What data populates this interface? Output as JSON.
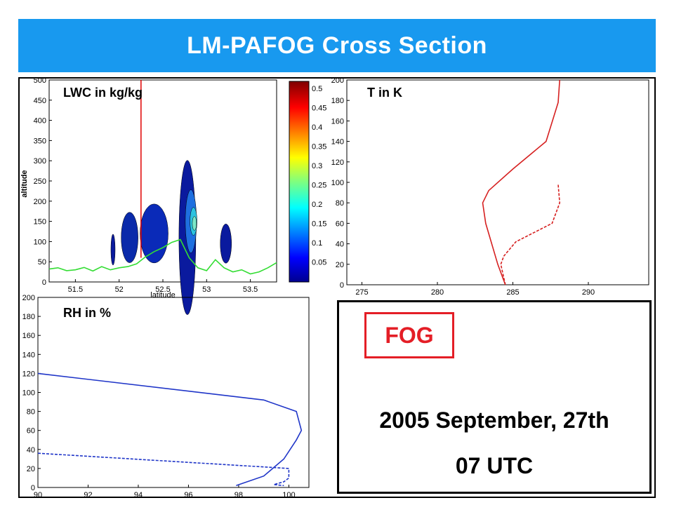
{
  "header": {
    "title": "LM-PAFOG Cross Section"
  },
  "colors": {
    "banner": "#1899ef",
    "fog_accent": "#e41e26",
    "temperature": "#d62020",
    "rh": "#1f35c8",
    "terrain": "#33dd33"
  },
  "info": {
    "fog_label": "FOG",
    "date": "2005 September, 27th",
    "time": "07 UTC"
  },
  "chart_data": [
    {
      "type": "heatmap",
      "label": "LWC in kg/kg",
      "ylabel": "altitude",
      "xlabel": "latitude",
      "xlim": [
        51.2,
        53.8
      ],
      "ylim": [
        0,
        500
      ],
      "xticks": [
        51.5,
        52,
        52.5,
        53,
        53.5
      ],
      "yticks": [
        0,
        50,
        100,
        150,
        200,
        250,
        300,
        350,
        400,
        450,
        500
      ],
      "vertical_marker_x": 52.25,
      "terrain": {
        "x": [
          51.2,
          51.3,
          51.4,
          51.5,
          51.6,
          51.7,
          51.8,
          51.9,
          52.0,
          52.1,
          52.2,
          52.3,
          52.4,
          52.5,
          52.6,
          52.7,
          52.8,
          52.9,
          53.0,
          53.1,
          53.2,
          53.3,
          53.4,
          53.5,
          53.6,
          53.7,
          53.8
        ],
        "y": [
          32,
          35,
          28,
          30,
          36,
          27,
          38,
          30,
          35,
          38,
          45,
          62,
          75,
          85,
          98,
          105,
          60,
          35,
          28,
          55,
          35,
          25,
          30,
          20,
          25,
          35,
          48
        ]
      },
      "colorbar": {
        "min": 0,
        "max": 0.52,
        "ticks": [
          0.05,
          0.1,
          0.15,
          0.2,
          0.25,
          0.3,
          0.35,
          0.4,
          0.45,
          0.5
        ]
      },
      "cells": [
        {
          "lat": 52.22,
          "alt": 100,
          "lwc": 0.05
        },
        {
          "lat": 52.35,
          "alt": 120,
          "lwc": 0.06
        },
        {
          "lat": 52.78,
          "alt": 150,
          "lwc": 0.12
        },
        {
          "lat": 52.92,
          "alt": 140,
          "lwc": 0.18
        },
        {
          "lat": 53.22,
          "alt": 90,
          "lwc": 0.05
        }
      ]
    },
    {
      "type": "line",
      "label": "T in K",
      "xlim": [
        274,
        294
      ],
      "ylim": [
        0,
        200
      ],
      "xticks": [
        275,
        280,
        285,
        290
      ],
      "yticks": [
        0,
        20,
        40,
        60,
        80,
        100,
        120,
        140,
        160,
        180,
        200
      ],
      "series": [
        {
          "style": "solid",
          "x": [
            284.5,
            284.0,
            283.2,
            283.0,
            283.4,
            285.0,
            287.2,
            288.0,
            288.1
          ],
          "y": [
            0,
            20,
            60,
            80,
            92,
            113,
            140,
            178,
            200
          ]
        },
        {
          "style": "dashed",
          "x": [
            284.5,
            284.2,
            284.4,
            285.2,
            287.6,
            288.1,
            288.0
          ],
          "y": [
            0,
            20,
            28,
            42,
            60,
            80,
            98
          ]
        }
      ]
    },
    {
      "type": "line",
      "label": "RH in %",
      "xlim": [
        90,
        100.8
      ],
      "ylim": [
        0,
        200
      ],
      "xticks": [
        90,
        92,
        94,
        96,
        98,
        100
      ],
      "yticks": [
        0,
        20,
        40,
        60,
        80,
        100,
        120,
        140,
        160,
        180,
        200
      ],
      "series": [
        {
          "style": "solid",
          "x": [
            90,
            99.0,
            100.3,
            100.4,
            100.5,
            100.3,
            99.8,
            99.0,
            97.9
          ],
          "y": [
            120,
            92,
            80,
            70,
            60,
            50,
            30,
            12,
            2
          ]
        },
        {
          "style": "dashed",
          "x": [
            90,
            100.0,
            100.0,
            99.8,
            99.4,
            99.8
          ],
          "y": [
            36,
            20,
            10,
            6,
            3,
            2
          ]
        }
      ]
    }
  ]
}
